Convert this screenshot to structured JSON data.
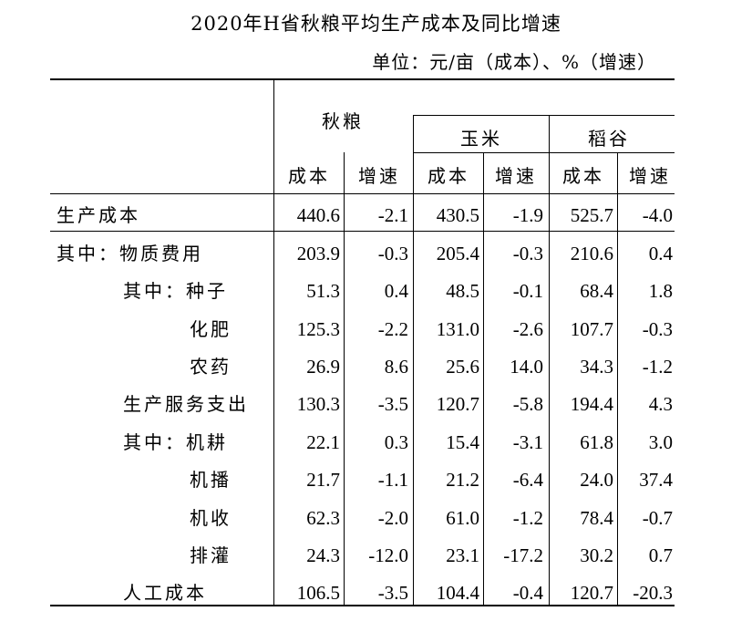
{
  "title": "2020年H省秋粮平均生产成本及同比增速",
  "unit": "单位：元/亩（成本）、%（增速）",
  "groups": {
    "qiuliang": "秋粮",
    "yumi": "玉米",
    "daogu": "稻谷"
  },
  "sub": {
    "cost": "成本",
    "growth": "增速"
  },
  "rows": [
    {
      "label": "生产成本",
      "values": [
        "440.6",
        "-2.1",
        "430.5",
        "-1.9",
        "525.7",
        "-4.0"
      ]
    },
    {
      "label": "其中：物质费用",
      "values": [
        "203.9",
        "-0.3",
        "205.4",
        "-0.3",
        "210.6",
        "0.4"
      ]
    },
    {
      "label": "其中：种子",
      "values": [
        "51.3",
        "0.4",
        "48.5",
        "-0.1",
        "68.4",
        "1.8"
      ]
    },
    {
      "label": "化肥",
      "values": [
        "125.3",
        "-2.2",
        "131.0",
        "-2.6",
        "107.7",
        "-0.3"
      ]
    },
    {
      "label": "农药",
      "values": [
        "26.9",
        "8.6",
        "25.6",
        "14.0",
        "34.3",
        "-1.2"
      ]
    },
    {
      "label": "生产服务支出",
      "values": [
        "130.3",
        "-3.5",
        "120.7",
        "-5.8",
        "194.4",
        "4.3"
      ]
    },
    {
      "label": "其中：机耕",
      "values": [
        "22.1",
        "0.3",
        "15.4",
        "-3.1",
        "61.8",
        "3.0"
      ]
    },
    {
      "label": "机播",
      "values": [
        "21.7",
        "-1.1",
        "21.2",
        "-6.4",
        "24.0",
        "37.4"
      ]
    },
    {
      "label": "机收",
      "values": [
        "62.3",
        "-2.0",
        "61.0",
        "-1.2",
        "78.4",
        "-0.7"
      ]
    },
    {
      "label": "排灌",
      "values": [
        "24.3",
        "-12.0",
        "23.1",
        "-17.2",
        "30.2",
        "0.7"
      ]
    },
    {
      "label": "人工成本",
      "values": [
        "106.5",
        "-3.5",
        "104.4",
        "-0.4",
        "120.7",
        "-20.3"
      ]
    }
  ]
}
